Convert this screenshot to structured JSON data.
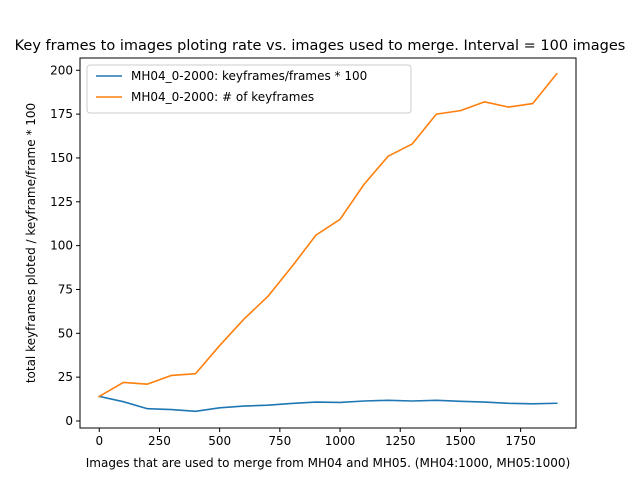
{
  "chart_data": {
    "type": "line",
    "title": "Key frames to images ploting rate vs. images used to merge. Interval = 100 images",
    "xlabel": "Images that are used to merge from MH04 and MH05. (MH04:1000, MH05:1000)",
    "ylabel": "total keyframes ploted / keyframe/frame * 100",
    "xlim": [
      -80,
      1980
    ],
    "ylim": [
      -4,
      207
    ],
    "xticks": [
      0,
      250,
      500,
      750,
      1000,
      1250,
      1500,
      1750
    ],
    "yticks": [
      0,
      25,
      50,
      75,
      100,
      125,
      150,
      175,
      200
    ],
    "grid": false,
    "legend_position": "top-left",
    "x": [
      0,
      100,
      200,
      300,
      400,
      500,
      600,
      700,
      800,
      900,
      1000,
      1100,
      1200,
      1300,
      1400,
      1500,
      1600,
      1700,
      1800,
      1900
    ],
    "series": [
      {
        "name": "MH04_0-2000: keyframes/frames * 100",
        "color": "#1f77b4",
        "values": [
          14,
          11,
          7,
          6.5,
          5.5,
          7.5,
          8.5,
          9,
          10,
          10.8,
          10.6,
          11.4,
          11.8,
          11.4,
          11.8,
          11.2,
          10.8,
          10.1,
          9.8,
          10.1
        ]
      },
      {
        "name": "MH04_0-2000: # of keyframes",
        "color": "#ff7f0e",
        "values": [
          14,
          22,
          21,
          26,
          27,
          43,
          58,
          71,
          88,
          106,
          115,
          135,
          151,
          158,
          175,
          177,
          182,
          179,
          181,
          198
        ]
      }
    ]
  }
}
